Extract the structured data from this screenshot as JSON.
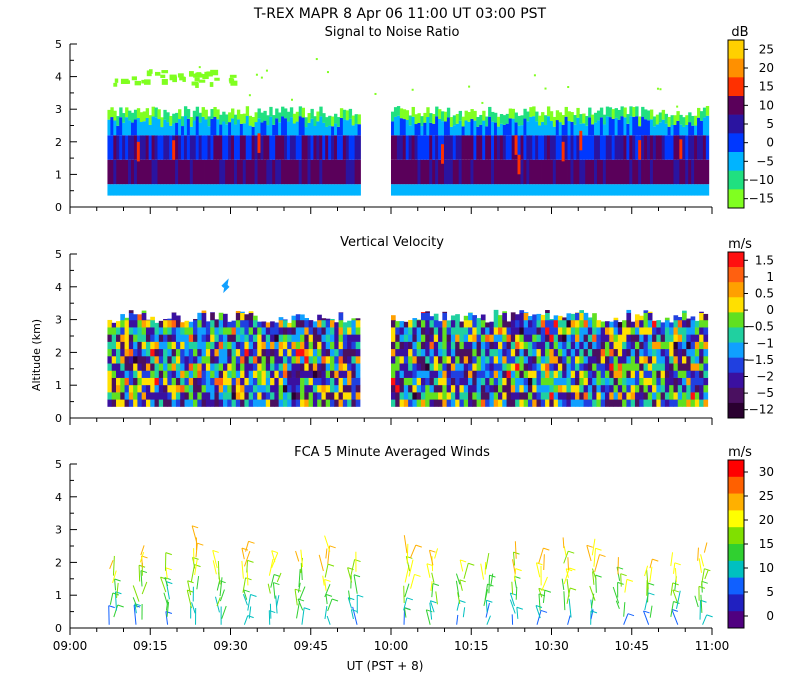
{
  "figure": {
    "main_title": "T-REX   MAPR   8 Apr 06   11:00 UT   03:00   PST",
    "ylabel": "Altitude (km)",
    "xlabel": "UT   (PST + 8)",
    "x_ticks": [
      "09:00",
      "09:15",
      "09:30",
      "09:45",
      "10:00",
      "10:15",
      "10:30",
      "10:45",
      "11:00"
    ]
  },
  "chart_data": [
    {
      "type": "heatmap",
      "title": "Signal to Noise Ratio",
      "unit": "dB",
      "ylim": [
        0,
        5
      ],
      "xlim_minutes": [
        0,
        120
      ],
      "y_ticks": [
        "0",
        "1",
        "2",
        "3",
        "4",
        "5"
      ],
      "colorbar_labels": [
        "25",
        "20",
        "15",
        "10",
        "5",
        "0",
        "−5",
        "−10",
        "−15"
      ],
      "colorbar_colors": [
        "#ffd000",
        "#ff9000",
        "#ff3000",
        "#5a005a",
        "#2a14a0",
        "#0038ff",
        "#00b4ff",
        "#20e080",
        "#80ff20"
      ],
      "data_gap_minutes": [
        54,
        60
      ],
      "data_ranges_minutes": [
        [
          7,
          54
        ],
        [
          60,
          119
        ]
      ],
      "layers_km": [
        {
          "bottom": 0.35,
          "top": 0.7,
          "level": "−5"
        },
        {
          "bottom": 0.7,
          "top": 1.5,
          "level": "10"
        },
        {
          "bottom": 1.5,
          "top": 2.2,
          "level": "5"
        },
        {
          "bottom": 2.2,
          "top": 2.7,
          "level": "−5"
        },
        {
          "bottom": 2.7,
          "top": 3.0,
          "level": "−15"
        }
      ]
    },
    {
      "type": "heatmap",
      "title": "Vertical Velocity",
      "unit": "m/s",
      "ylim": [
        0,
        5
      ],
      "xlim_minutes": [
        0,
        120
      ],
      "y_ticks": [
        "0",
        "1",
        "2",
        "3",
        "4",
        "5"
      ],
      "colorbar_labels": [
        "1.5",
        "1",
        "0.5",
        "0",
        "−0.5",
        "−1",
        "−1.5",
        "−2",
        "−5",
        "−12"
      ],
      "colorbar_colors": [
        "#ff1010",
        "#ff6010",
        "#ffa000",
        "#ffe000",
        "#60e020",
        "#20d0a0",
        "#10a0ff",
        "#2040e0",
        "#3a10a0",
        "#4a1060",
        "#2a0030"
      ],
      "data_gap_minutes": [
        54,
        60
      ],
      "data_ranges_minutes": [
        [
          7,
          54
        ],
        [
          60,
          119
        ]
      ],
      "echo_top_km": 3.0,
      "echo_bottom_km": 0.35
    },
    {
      "type": "scatter",
      "title": "FCA 5 Minute Averaged Winds",
      "unit": "m/s",
      "ylim": [
        0,
        5
      ],
      "xlim_minutes": [
        0,
        120
      ],
      "y_ticks": [
        "0",
        "1",
        "2",
        "3",
        "4",
        "5"
      ],
      "colorbar_labels": [
        "30",
        "25",
        "20",
        "15",
        "10",
        "5",
        "0"
      ],
      "colorbar_colors": [
        "#ff0000",
        "#ff6000",
        "#ffb000",
        "#ffff00",
        "#80e000",
        "#30d030",
        "#00c0c0",
        "#1060ff",
        "#2020c0",
        "#500080"
      ],
      "profile_times_minutes": [
        8,
        13,
        18,
        23,
        28,
        33,
        38,
        43,
        48,
        53,
        63,
        68,
        73,
        78,
        83,
        88,
        93,
        98,
        103,
        108,
        113,
        118
      ],
      "wind_barb_altitudes_km": [
        0.1,
        0.4,
        0.7,
        1.0,
        1.3,
        1.6,
        1.9,
        2.2,
        2.5,
        2.8
      ]
    }
  ]
}
